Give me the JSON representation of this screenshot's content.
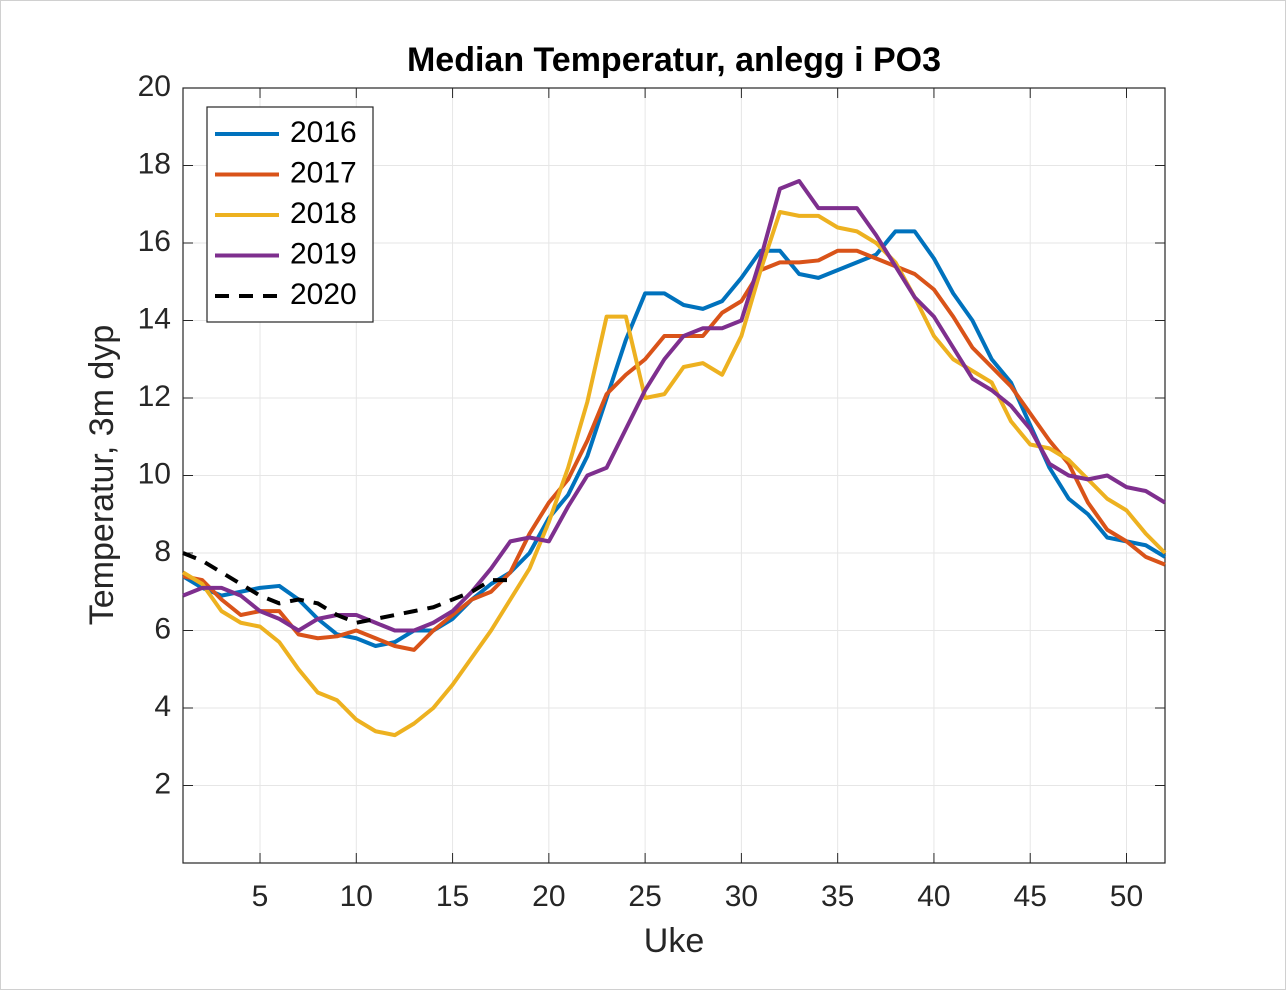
{
  "chart_data": {
    "type": "line",
    "title": "Median Temperatur, anlegg i PO3",
    "xlabel": "Uke",
    "ylabel": "Temperatur, 3m dyp",
    "x": [
      1,
      2,
      3,
      4,
      5,
      6,
      7,
      8,
      9,
      10,
      11,
      12,
      13,
      14,
      15,
      16,
      17,
      18,
      19,
      20,
      21,
      22,
      23,
      24,
      25,
      26,
      27,
      28,
      29,
      30,
      31,
      32,
      33,
      34,
      35,
      36,
      37,
      38,
      39,
      40,
      41,
      42,
      43,
      44,
      45,
      46,
      47,
      48,
      49,
      50,
      51,
      52
    ],
    "xlim": [
      1,
      52
    ],
    "xticks": [
      5,
      10,
      15,
      20,
      25,
      30,
      35,
      40,
      45,
      50
    ],
    "ylim": [
      0,
      20
    ],
    "yticks": [
      2,
      4,
      6,
      8,
      10,
      12,
      14,
      16,
      18,
      20
    ],
    "grid": true,
    "legend": "upper-left",
    "series": [
      {
        "name": "2016",
        "color": "#0072BD",
        "line_style": "solid",
        "values": [
          7.4,
          7.1,
          6.9,
          7.0,
          7.1,
          7.15,
          6.8,
          6.3,
          5.9,
          5.8,
          5.6,
          5.7,
          6.0,
          6.0,
          6.3,
          6.8,
          7.2,
          7.5,
          8.0,
          8.9,
          9.5,
          10.5,
          12.0,
          13.5,
          14.7,
          14.7,
          14.4,
          14.3,
          14.5,
          15.1,
          15.8,
          15.8,
          15.2,
          15.1,
          15.3,
          15.5,
          15.7,
          16.3,
          16.3,
          15.6,
          14.7,
          14.0,
          13.0,
          12.4,
          11.3,
          10.2,
          9.4,
          9.0,
          8.4,
          8.3,
          8.2,
          7.9
        ]
      },
      {
        "name": "2017",
        "color": "#D95319",
        "line_style": "solid",
        "values": [
          7.4,
          7.3,
          6.8,
          6.4,
          6.5,
          6.5,
          5.9,
          5.8,
          5.85,
          6.0,
          5.8,
          5.6,
          5.5,
          6.0,
          6.4,
          6.8,
          7.0,
          7.5,
          8.5,
          9.3,
          9.9,
          10.9,
          12.1,
          12.6,
          13.0,
          13.6,
          13.6,
          13.6,
          14.2,
          14.5,
          15.3,
          15.5,
          15.5,
          15.55,
          15.8,
          15.8,
          15.6,
          15.4,
          15.2,
          14.8,
          14.1,
          13.3,
          12.8,
          12.3,
          11.6,
          10.9,
          10.3,
          9.3,
          8.6,
          8.3,
          7.9,
          7.7
        ]
      },
      {
        "name": "2018",
        "color": "#EDB120",
        "line_style": "solid",
        "values": [
          7.5,
          7.2,
          6.5,
          6.2,
          6.1,
          5.7,
          5.0,
          4.4,
          4.2,
          3.7,
          3.4,
          3.3,
          3.6,
          4.0,
          4.6,
          5.3,
          6.0,
          6.8,
          7.6,
          8.8,
          10.2,
          11.9,
          14.1,
          14.1,
          12.0,
          12.1,
          12.8,
          12.9,
          12.6,
          13.6,
          15.3,
          16.8,
          16.7,
          16.7,
          16.4,
          16.3,
          16.0,
          15.5,
          14.6,
          13.6,
          13.0,
          12.7,
          12.4,
          11.4,
          10.8,
          10.7,
          10.4,
          9.9,
          9.4,
          9.1,
          8.5,
          8.0
        ]
      },
      {
        "name": "2019",
        "color": "#7E2F8E",
        "line_style": "solid",
        "values": [
          6.9,
          7.1,
          7.1,
          6.9,
          6.5,
          6.3,
          6.0,
          6.3,
          6.4,
          6.4,
          6.2,
          6.0,
          6.0,
          6.2,
          6.5,
          7.0,
          7.6,
          8.3,
          8.4,
          8.3,
          9.2,
          10.0,
          10.2,
          11.2,
          12.2,
          13.0,
          13.6,
          13.8,
          13.8,
          14.0,
          15.6,
          17.4,
          17.6,
          16.9,
          16.9,
          16.9,
          16.2,
          15.4,
          14.6,
          14.1,
          13.3,
          12.5,
          12.2,
          11.8,
          11.2,
          10.3,
          10.0,
          9.9,
          10.0,
          9.7,
          9.6,
          9.3
        ]
      },
      {
        "name": "2020",
        "color": "#000000",
        "line_style": "dashed",
        "values": [
          8.0,
          7.8,
          7.5,
          7.2,
          6.9,
          6.7,
          6.8,
          6.7,
          6.4,
          6.2,
          6.3,
          6.4,
          6.5,
          6.6,
          6.8,
          7.0,
          7.3,
          7.3,
          null,
          null,
          null,
          null,
          null,
          null,
          null,
          null,
          null,
          null,
          null,
          null,
          null,
          null,
          null,
          null,
          null,
          null,
          null,
          null,
          null,
          null,
          null,
          null,
          null,
          null,
          null,
          null,
          null,
          null,
          null,
          null,
          null,
          null
        ]
      }
    ]
  }
}
